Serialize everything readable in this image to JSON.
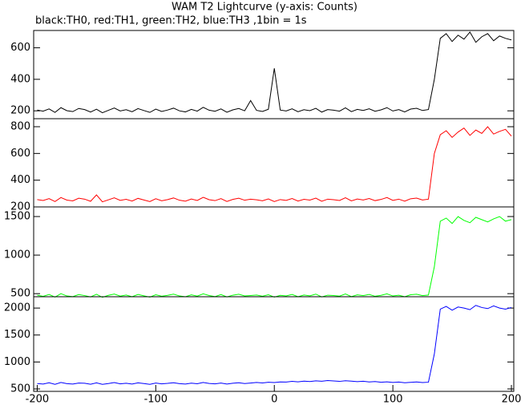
{
  "chart_data": [
    {
      "type": "line",
      "title": "WAM T2 Lightcurve (y-axis: Counts)",
      "subtitle": "black:TH0, red:TH1, green:TH2, blue:TH3 ,1bin = 1s",
      "color": "#000000",
      "x": [
        -200,
        -195,
        -190,
        -185,
        -180,
        -175,
        -170,
        -165,
        -160,
        -155,
        -150,
        -145,
        -140,
        -135,
        -130,
        -125,
        -120,
        -115,
        -110,
        -105,
        -100,
        -95,
        -90,
        -85,
        -80,
        -75,
        -70,
        -65,
        -60,
        -55,
        -50,
        -45,
        -40,
        -35,
        -30,
        -25,
        -20,
        -15,
        -10,
        -5,
        0,
        5,
        10,
        15,
        20,
        25,
        30,
        35,
        40,
        45,
        50,
        55,
        60,
        65,
        70,
        75,
        80,
        85,
        90,
        95,
        100,
        105,
        110,
        115,
        120,
        125,
        130,
        135,
        140,
        145,
        150,
        155,
        160,
        165,
        170,
        175,
        180,
        185,
        190,
        195,
        200
      ],
      "values": [
        205,
        198,
        212,
        190,
        220,
        201,
        195,
        215,
        208,
        192,
        210,
        188,
        203,
        218,
        199,
        207,
        194,
        214,
        202,
        190,
        211,
        196,
        205,
        217,
        200,
        193,
        209,
        198,
        222,
        204,
        197,
        212,
        191,
        206,
        215,
        200,
        265,
        203,
        196,
        210,
        470,
        205,
        199,
        213,
        194,
        207,
        201,
        216,
        192,
        208,
        204,
        198,
        219,
        195,
        209,
        202,
        213,
        197,
        206,
        220,
        199,
        208,
        193,
        211,
        216,
        202,
        208,
        400,
        660,
        690,
        640,
        680,
        655,
        700,
        635,
        670,
        690,
        645,
        675,
        660,
        650
      ],
      "xlim": [
        -203,
        202
      ],
      "ylim": [
        150,
        710
      ],
      "yticks": [
        200,
        400,
        600
      ]
    },
    {
      "type": "line",
      "color": "#ff0000",
      "x": [
        -200,
        -195,
        -190,
        -185,
        -180,
        -175,
        -170,
        -165,
        -160,
        -155,
        -150,
        -145,
        -140,
        -135,
        -130,
        -125,
        -120,
        -115,
        -110,
        -105,
        -100,
        -95,
        -90,
        -85,
        -80,
        -75,
        -70,
        -65,
        -60,
        -55,
        -50,
        -45,
        -40,
        -35,
        -30,
        -25,
        -20,
        -15,
        -10,
        -5,
        0,
        5,
        10,
        15,
        20,
        25,
        30,
        35,
        40,
        45,
        50,
        55,
        60,
        65,
        70,
        75,
        80,
        85,
        90,
        95,
        100,
        105,
        110,
        115,
        120,
        125,
        130,
        135,
        140,
        145,
        150,
        155,
        160,
        165,
        170,
        175,
        180,
        185,
        190,
        195,
        200
      ],
      "values": [
        255,
        248,
        262,
        240,
        270,
        251,
        245,
        265,
        258,
        242,
        290,
        238,
        253,
        268,
        249,
        257,
        244,
        264,
        252,
        240,
        261,
        246,
        255,
        267,
        250,
        243,
        259,
        248,
        272,
        254,
        247,
        262,
        241,
        256,
        265,
        250,
        258,
        253,
        246,
        260,
        240,
        255,
        249,
        263,
        244,
        257,
        251,
        266,
        242,
        258,
        254,
        248,
        269,
        245,
        259,
        252,
        263,
        247,
        256,
        270,
        249,
        258,
        243,
        261,
        266,
        252,
        258,
        600,
        740,
        770,
        720,
        760,
        790,
        735,
        775,
        750,
        800,
        745,
        765,
        780,
        730
      ],
      "xlim": [
        -203,
        202
      ],
      "ylim": [
        200,
        860
      ],
      "yticks": [
        200,
        400,
        600,
        800
      ]
    },
    {
      "type": "line",
      "color": "#00ff00",
      "x": [
        -200,
        -195,
        -190,
        -185,
        -180,
        -175,
        -170,
        -165,
        -160,
        -155,
        -150,
        -145,
        -140,
        -135,
        -130,
        -125,
        -120,
        -115,
        -110,
        -105,
        -100,
        -95,
        -90,
        -85,
        -80,
        -75,
        -70,
        -65,
        -60,
        -55,
        -50,
        -45,
        -40,
        -35,
        -30,
        -25,
        -20,
        -15,
        -10,
        -5,
        0,
        5,
        10,
        15,
        20,
        25,
        30,
        35,
        40,
        45,
        50,
        55,
        60,
        65,
        70,
        75,
        80,
        85,
        90,
        95,
        100,
        105,
        110,
        115,
        120,
        125,
        130,
        135,
        140,
        145,
        150,
        155,
        160,
        165,
        170,
        175,
        180,
        185,
        190,
        195,
        200
      ],
      "values": [
        480,
        465,
        490,
        455,
        500,
        470,
        462,
        488,
        475,
        458,
        492,
        452,
        478,
        495,
        468,
        482,
        460,
        490,
        472,
        455,
        486,
        466,
        478,
        494,
        470,
        460,
        484,
        468,
        498,
        476,
        462,
        488,
        458,
        480,
        492,
        470,
        476,
        482,
        466,
        486,
        455,
        478,
        470,
        490,
        460,
        482,
        472,
        494,
        458,
        480,
        476,
        468,
        496,
        462,
        484,
        474,
        490,
        466,
        478,
        498,
        470,
        480,
        460,
        486,
        492,
        474,
        482,
        850,
        1440,
        1480,
        1410,
        1500,
        1450,
        1420,
        1490,
        1460,
        1430,
        1470,
        1500,
        1440,
        1460
      ],
      "xlim": [
        -203,
        202
      ],
      "ylim": [
        460,
        1625
      ],
      "yticks": [
        500,
        1000,
        1500
      ]
    },
    {
      "type": "line",
      "color": "#0000ff",
      "x": [
        -200,
        -195,
        -190,
        -185,
        -180,
        -175,
        -170,
        -165,
        -160,
        -155,
        -150,
        -145,
        -140,
        -135,
        -130,
        -125,
        -120,
        -115,
        -110,
        -105,
        -100,
        -95,
        -90,
        -85,
        -80,
        -75,
        -70,
        -65,
        -60,
        -55,
        -50,
        -45,
        -40,
        -35,
        -30,
        -25,
        -20,
        -15,
        -10,
        -5,
        0,
        5,
        10,
        15,
        20,
        25,
        30,
        35,
        40,
        45,
        50,
        55,
        60,
        65,
        70,
        75,
        80,
        85,
        90,
        95,
        100,
        105,
        110,
        115,
        120,
        125,
        130,
        135,
        140,
        145,
        150,
        155,
        160,
        165,
        170,
        175,
        180,
        185,
        190,
        195,
        200
      ],
      "values": [
        600,
        590,
        615,
        585,
        620,
        598,
        590,
        610,
        605,
        588,
        612,
        585,
        600,
        618,
        595,
        605,
        590,
        612,
        600,
        586,
        610,
        594,
        603,
        615,
        598,
        590,
        608,
        596,
        620,
        602,
        595,
        610,
        590,
        605,
        615,
        600,
        610,
        620,
        612,
        625,
        618,
        630,
        628,
        640,
        632,
        645,
        638,
        650,
        642,
        655,
        648,
        640,
        652,
        645,
        635,
        642,
        630,
        638,
        625,
        632,
        620,
        628,
        615,
        622,
        630,
        618,
        625,
        1150,
        1980,
        2030,
        1960,
        2020,
        2000,
        1970,
        2050,
        2010,
        1990,
        2040,
        2000,
        1980,
        2010
      ],
      "xlim": [
        -203,
        202
      ],
      "ylim": [
        455,
        2210
      ],
      "yticks": [
        500,
        1000,
        1500,
        2000
      ],
      "xticks": [
        -200,
        -100,
        0,
        100,
        200
      ]
    }
  ]
}
